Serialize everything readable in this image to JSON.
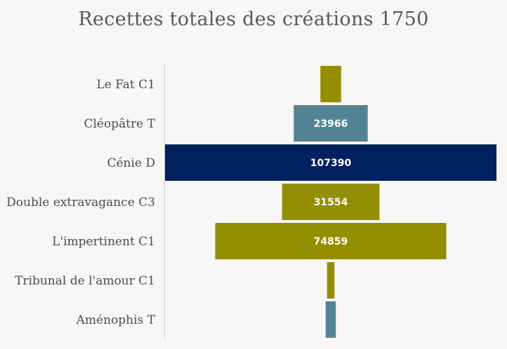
{
  "chart_data": {
    "type": "bar",
    "orientation": "horizontal",
    "style": "funnel-centered",
    "title": "Recettes totales des créations 1750",
    "categories": [
      "Le Fat C1",
      "Cléopâtre T",
      "Cénie D",
      "Double extravagance C3",
      "L'impertinent C1",
      "Tribunal de l'amour C1",
      "Aménophis T"
    ],
    "values": [
      6700,
      23966,
      107390,
      31554,
      74859,
      2400,
      3300
    ],
    "value_labels": [
      "",
      "23966",
      "107390",
      "31554",
      "74859",
      "",
      ""
    ],
    "colors": [
      "#948f00",
      "#548494",
      "#002060",
      "#948f00",
      "#948f00",
      "#948f00",
      "#548494"
    ],
    "xlabel": "",
    "ylabel": "",
    "grid": false,
    "legend": "none"
  }
}
